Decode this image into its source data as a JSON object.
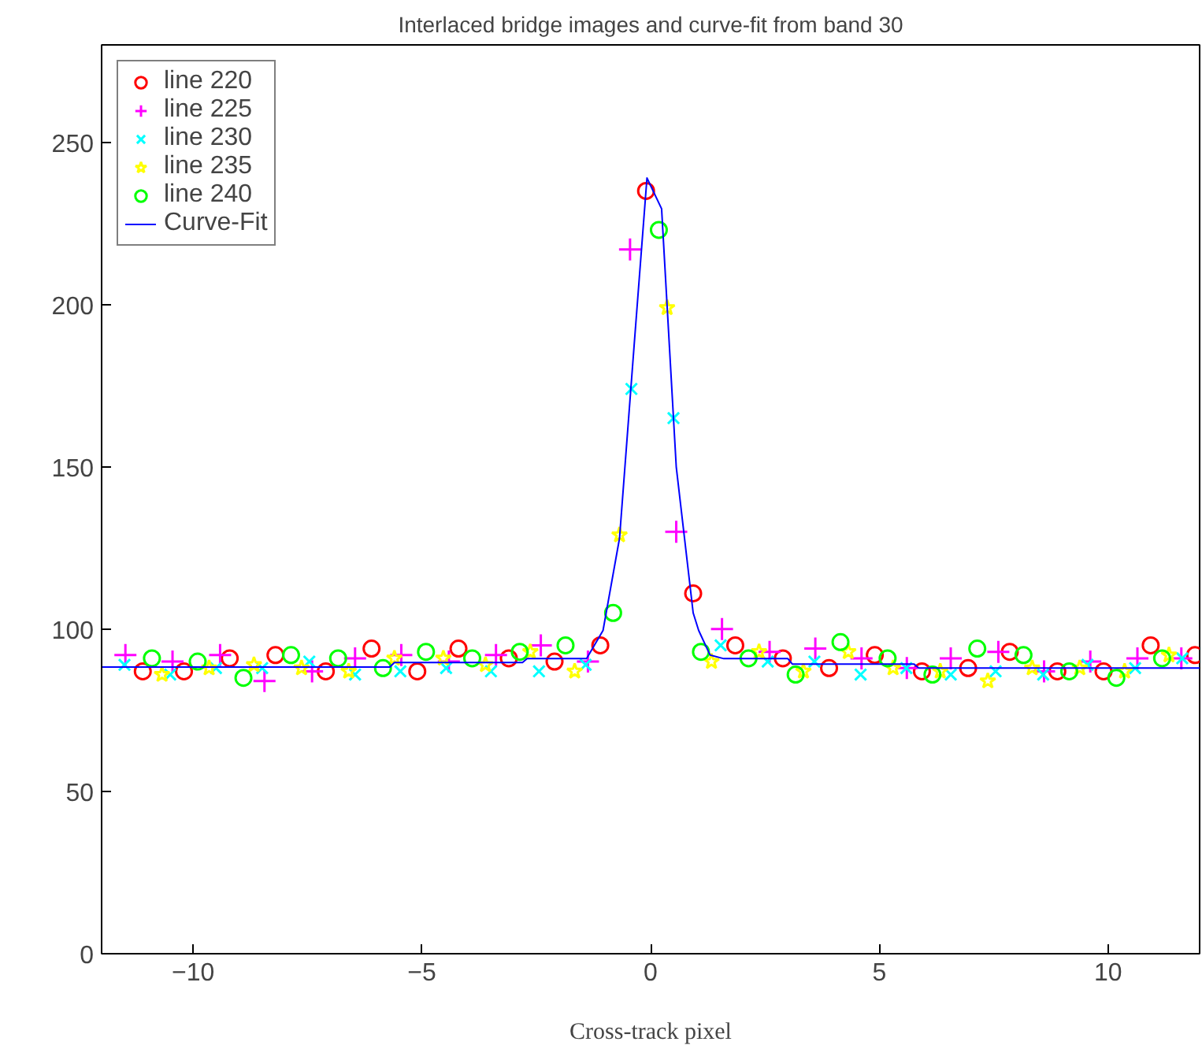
{
  "chart_data": {
    "type": "scatter",
    "title": "Interlaced bridge images and curve-fit from band 30",
    "xlabel": "Cross-track pixel",
    "xlim": [
      -12,
      12
    ],
    "ylim": [
      0,
      280
    ],
    "xticks": [
      -10,
      -5,
      0,
      5,
      10
    ],
    "yticks": [
      0,
      50,
      100,
      150,
      200,
      250
    ],
    "grid": false,
    "legend": "top left",
    "series": [
      {
        "name": "line 220",
        "color": "#ff0000",
        "marker": "circle",
        "x": [
          -11.1,
          -10.2,
          -9.2,
          -8.2,
          -7.1,
          -6.1,
          -5.1,
          -4.2,
          -3.1,
          -2.1,
          -1.1,
          -0.1,
          0.93,
          1.85,
          2.89,
          3.9,
          4.9,
          5.93,
          6.94,
          7.85,
          8.89,
          9.9,
          10.93,
          11.9
        ],
        "values": [
          87,
          87,
          91,
          92,
          87,
          94,
          87,
          94,
          91,
          90,
          95,
          235,
          111,
          95,
          91,
          88,
          92,
          87,
          88,
          93,
          87,
          87,
          95,
          92
        ]
      },
      {
        "name": "line 225",
        "color": "#ff00ff",
        "marker": "cross",
        "x": [
          -11.48,
          -10.45,
          -9.41,
          -8.44,
          -7.4,
          -6.46,
          -5.45,
          -4.41,
          -3.38,
          -2.4,
          -1.37,
          -0.45,
          0.56,
          1.56,
          2.6,
          3.6,
          4.61,
          5.6,
          6.56,
          7.6,
          8.6,
          9.61,
          10.64,
          11.6
        ],
        "values": [
          92,
          90,
          92,
          84,
          87,
          91,
          92,
          90,
          92,
          95,
          90,
          217,
          130,
          100,
          93,
          94,
          91,
          88,
          91,
          93,
          87,
          90,
          91,
          91
        ]
      },
      {
        "name": "line 230",
        "color": "#00ffff",
        "marker": "x",
        "x": [
          -11.5,
          -10.5,
          -9.5,
          -8.49,
          -7.46,
          -6.46,
          -5.47,
          -4.47,
          -3.49,
          -2.44,
          -1.42,
          -0.42,
          0.5,
          1.53,
          2.56,
          3.58,
          4.59,
          5.59,
          6.56,
          7.54,
          8.58,
          9.55,
          10.59,
          11.62
        ],
        "values": [
          89,
          86,
          88,
          88,
          90,
          86,
          87,
          88,
          87,
          87,
          89,
          174,
          165,
          95,
          90,
          90,
          86,
          88,
          86,
          87,
          86,
          89,
          88,
          91
        ]
      },
      {
        "name": "line 235",
        "color": "#ffff00",
        "marker": "star",
        "x": [
          -10.68,
          -9.65,
          -8.67,
          -7.63,
          -6.6,
          -5.6,
          -4.53,
          -3.61,
          -2.63,
          -1.66,
          -0.68,
          0.36,
          1.33,
          2.37,
          3.34,
          4.32,
          5.3,
          6.33,
          7.37,
          8.34,
          9.38,
          10.36,
          11.33
        ],
        "values": [
          86,
          88,
          89,
          88,
          87,
          91,
          91,
          89,
          93,
          87,
          129,
          199,
          90,
          93,
          87,
          93,
          88,
          87,
          84,
          88,
          88,
          87,
          92
        ]
      },
      {
        "name": "line 240",
        "color": "#00ff00",
        "marker": "circle",
        "x": [
          -10.9,
          -9.9,
          -8.9,
          -7.86,
          -6.83,
          -5.85,
          -4.91,
          -3.9,
          -2.86,
          -1.86,
          -0.82,
          0.18,
          1.1,
          2.14,
          3.17,
          4.15,
          5.18,
          6.16,
          7.14,
          8.15,
          9.15,
          10.18,
          11.18
        ],
        "values": [
          91,
          90,
          85,
          92,
          91,
          88,
          93,
          91,
          93,
          95,
          105,
          223,
          93,
          91,
          86,
          96,
          91,
          86,
          94,
          92,
          87,
          85,
          91
        ]
      },
      {
        "name": "Curve-Fit",
        "type": "line",
        "color": "#0000ff",
        "marker": "none",
        "line_style": "solid",
        "x": [
          -12,
          -5.7,
          -5.6,
          -2.8,
          -2.7,
          -1.4,
          -1.04,
          -0.68,
          -0.36,
          -0.08,
          0.24,
          0.56,
          0.93,
          1.05,
          1.3,
          1.6,
          3.0,
          3.1,
          5.76,
          5.86,
          12
        ],
        "values": [
          88.3,
          88.3,
          89.7,
          89.7,
          90.9,
          90.9,
          99.6,
          128,
          187.5,
          239,
          229.5,
          150,
          105,
          99.6,
          92,
          90.9,
          90.9,
          89.2,
          89.2,
          88,
          88
        ]
      }
    ]
  }
}
